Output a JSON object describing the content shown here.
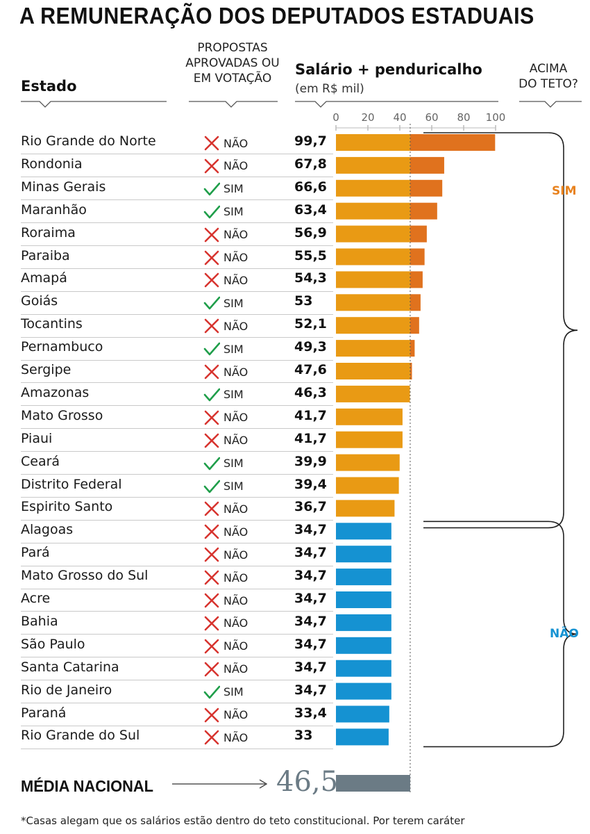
{
  "title": "A REMUNERAÇÃO DOS DEPUTADOS ESTADUAIS",
  "headers": {
    "estado": "Estado",
    "propostas": "PROPOSTAS\nAPROVADAS OU\nEM VOTAÇÃO",
    "salario": "Salário + penduricalho",
    "unit": "(em R$ mil)",
    "teto": "ACIMA\nDO TETO?"
  },
  "chart_data": {
    "type": "bar",
    "orientation": "horizontal",
    "xlim": [
      0,
      100
    ],
    "ticks": [
      0,
      20,
      40,
      60,
      80,
      100
    ],
    "reference_line": 46.5,
    "categories": [
      "Rio Grande do Norte",
      "Rondonia",
      "Minas Gerais",
      "Maranhão",
      "Roraima",
      "Paraiba",
      "Amapá",
      "Goiás",
      "Tocantins",
      "Pernambuco",
      "Sergipe",
      "Amazonas",
      "Mato Grosso",
      "Piaui",
      "Ceará",
      "Distrito Federal",
      "Espirito Santo",
      "Alagoas",
      "Pará",
      "Mato Grosso do Sul",
      "Acre",
      "Bahia",
      "São Paulo",
      "Santa Catarina",
      "Rio de Janeiro",
      "Paraná",
      "Rio Grande do Sul"
    ],
    "values": [
      99.7,
      67.8,
      66.6,
      63.4,
      56.9,
      55.5,
      54.3,
      53,
      52.1,
      49.3,
      47.6,
      46.3,
      41.7,
      41.7,
      39.9,
      39.4,
      36.7,
      34.7,
      34.7,
      34.7,
      34.7,
      34.7,
      34.7,
      34.7,
      34.7,
      33.4,
      33
    ],
    "value_labels": [
      "99,7",
      "67,8",
      "66,6",
      "63,4",
      "56,9",
      "55,5",
      "54,3",
      "53",
      "52,1",
      "49,3",
      "47,6",
      "46,3",
      "41,7",
      "41,7",
      "39,9",
      "39,4",
      "36,7",
      "34,7",
      "34,7",
      "34,7",
      "34,7",
      "34,7",
      "34,7",
      "34,7",
      "34,7",
      "33,4",
      "33"
    ],
    "propostas": [
      "NÃO",
      "NÃO",
      "SIM",
      "SIM",
      "NÃO",
      "NÃO",
      "NÃO",
      "SIM",
      "NÃO",
      "SIM",
      "NÃO",
      "SIM",
      "NÃO",
      "NÃO",
      "SIM",
      "SIM",
      "NÃO",
      "NÃO",
      "NÃO",
      "NÃO",
      "NÃO",
      "NÃO",
      "NÃO",
      "NÃO",
      "SIM",
      "NÃO",
      "NÃO"
    ],
    "acima_do_teto": [
      "SIM",
      "SIM",
      "SIM",
      "SIM",
      "SIM",
      "SIM",
      "SIM",
      "SIM",
      "SIM",
      "SIM",
      "SIM",
      "SIM",
      "SIM",
      "SIM",
      "SIM",
      "SIM",
      "SIM",
      "NÃO",
      "NÃO",
      "NÃO",
      "NÃO",
      "NÃO",
      "NÃO",
      "NÃO",
      "NÃO",
      "NÃO",
      "NÃO"
    ],
    "groups": [
      {
        "label": "SIM",
        "color": "#e8821e"
      },
      {
        "label": "NÃO",
        "color": "#1592d2"
      }
    ],
    "average": {
      "label": "MÉDIA NACIONAL",
      "value": 46.5,
      "value_label": "46,5"
    }
  },
  "colors": {
    "bar_sim_base": "#e99a14",
    "bar_sim_over": "#e0721e",
    "bar_nao": "#1592d2",
    "bar_average": "#6b7b85",
    "check": "#1f9e4a",
    "cross": "#d7342f"
  },
  "footnote": "*Casas alegam que os salários estão dentro do teto constitucional. Por terem caráter"
}
